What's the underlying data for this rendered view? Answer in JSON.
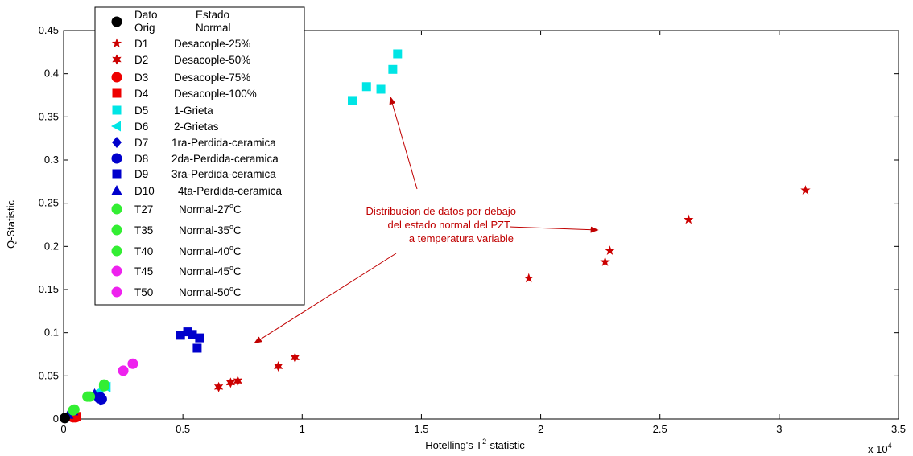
{
  "chart_data": {
    "type": "scatter",
    "xlabel_prefix": "Hotelling's T",
    "xlabel_sup": "2",
    "xlabel_suffix": "-statistic",
    "ylabel": "Q-Statistic",
    "x_scale_base": "x 10",
    "x_scale_exp": "4",
    "xlim": [
      0,
      3.5
    ],
    "ylim": [
      0,
      0.45
    ],
    "x_ticks": [
      "0",
      "0.5",
      "1",
      "1.5",
      "2",
      "2.5",
      "3",
      "3.5"
    ],
    "y_ticks": [
      "0",
      "0.05",
      "0.1",
      "0.15",
      "0.2",
      "0.25",
      "0.3",
      "0.35",
      "0.4",
      "0.45"
    ],
    "grid": false,
    "legend_placement": "top-left",
    "legend_header": {
      "col1_line1": "Dato",
      "col1_line2": "Orig",
      "col2_line1": "Estado",
      "col2_line2": "Normal"
    },
    "series": [
      {
        "name": "Desacople-25%",
        "code": "D1",
        "marker": "star5",
        "color": "#cc0000",
        "points": [
          [
            1.95,
            0.163
          ],
          [
            2.27,
            0.182
          ],
          [
            2.29,
            0.195
          ],
          [
            2.62,
            0.231
          ],
          [
            3.11,
            0.265
          ]
        ]
      },
      {
        "name": "Desacople-50%",
        "code": "D2",
        "marker": "star6",
        "color": "#cc0000",
        "points": [
          [
            0.65,
            0.037
          ],
          [
            0.7,
            0.042
          ],
          [
            0.73,
            0.044
          ],
          [
            0.9,
            0.061
          ],
          [
            0.97,
            0.071
          ]
        ]
      },
      {
        "name": "Desacople-75%",
        "code": "D3",
        "marker": "circle",
        "color": "#ee0000",
        "points": [
          [
            0.04,
            0.002
          ],
          [
            0.05,
            0.002
          ]
        ]
      },
      {
        "name": "Desacople-100%",
        "code": "D4",
        "marker": "square",
        "color": "#ee0000",
        "points": [
          [
            0.045,
            0.002
          ],
          [
            0.055,
            0.003
          ]
        ]
      },
      {
        "name": "1-Grieta",
        "code": "D5",
        "marker": "square",
        "color": "#00e5e5",
        "points": [
          [
            1.21,
            0.369
          ],
          [
            1.27,
            0.385
          ],
          [
            1.33,
            0.382
          ],
          [
            1.38,
            0.405
          ],
          [
            1.4,
            0.423
          ]
        ]
      },
      {
        "name": "2-Grietas",
        "code": "D6",
        "marker": "triangle-left",
        "color": "#00e5e5",
        "points": [
          [
            0.12,
            0.027
          ],
          [
            0.15,
            0.032
          ],
          [
            0.18,
            0.037
          ]
        ]
      },
      {
        "name": "1ra-Perdida-ceramica",
        "code": "D7",
        "marker": "diamond",
        "color": "#0000cc",
        "points": [
          [
            0.14,
            0.025
          ],
          [
            0.155,
            0.022
          ]
        ]
      },
      {
        "name": "2da-Perdida-ceramica",
        "code": "D8",
        "marker": "circle",
        "color": "#0000cc",
        "points": [
          [
            0.15,
            0.024
          ],
          [
            0.16,
            0.023
          ],
          [
            0.155,
            0.025
          ]
        ]
      },
      {
        "name": "3ra-Perdida-ceramica",
        "code": "D9",
        "marker": "square",
        "color": "#0000cc",
        "points": [
          [
            0.49,
            0.097
          ],
          [
            0.52,
            0.101
          ],
          [
            0.54,
            0.098
          ],
          [
            0.57,
            0.094
          ],
          [
            0.56,
            0.082
          ]
        ]
      },
      {
        "name": "4ta-Perdida-ceramica",
        "code": "D10",
        "marker": "triangle-up",
        "color": "#0000cc",
        "points": [
          [
            0.02,
            0.005
          ],
          [
            0.04,
            0.009
          ],
          [
            0.13,
            0.029
          ]
        ]
      },
      {
        "name": "Normal-27",
        "legend_label": "Normal-27",
        "unit_sup": "o",
        "unit": "C",
        "code": "T27",
        "marker": "circle",
        "color": "#33ee33",
        "points": [
          [
            0.11,
            0.026
          ],
          [
            0.17,
            0.04
          ]
        ]
      },
      {
        "name": "Normal-35",
        "legend_label": "Normal-35",
        "unit_sup": "o",
        "unit": "C",
        "code": "T35",
        "marker": "circle",
        "color": "#33ee33",
        "points": [
          [
            0.045,
            0.011
          ],
          [
            0.17,
            0.038
          ]
        ]
      },
      {
        "name": "Normal-40",
        "legend_label": "Normal-40",
        "unit_sup": "o",
        "unit": "C",
        "code": "T40",
        "marker": "circle",
        "color": "#33ee33",
        "points": [
          [
            0.04,
            0.01
          ],
          [
            0.1,
            0.026
          ]
        ]
      },
      {
        "name": "Normal-45",
        "legend_label": "Normal-45",
        "unit_sup": "o",
        "unit": "C",
        "code": "T45",
        "marker": "circle",
        "color": "#ee22ee",
        "points": [
          [
            0.25,
            0.056
          ]
        ]
      },
      {
        "name": "Normal-50",
        "legend_label": "Normal-50",
        "unit_sup": "o",
        "unit": "C",
        "code": "T50",
        "marker": "circle",
        "color": "#ee22ee",
        "points": [
          [
            0.29,
            0.064
          ]
        ]
      },
      {
        "name": "Normal",
        "code": "Dato Orig",
        "marker": "circle",
        "color": "#000000",
        "in_legend_as_header": true,
        "points": [
          [
            0.005,
            0.001
          ]
        ]
      }
    ],
    "annotation": {
      "lines": [
        "Distribucion de datos por debajo",
        "del estado normal del PZT",
        "a temperatura variable"
      ],
      "color": "#c00000",
      "arrow_targets": [
        [
          1.37,
          0.373
        ],
        [
          2.24,
          0.219
        ],
        [
          0.8,
          0.088
        ]
      ]
    }
  }
}
